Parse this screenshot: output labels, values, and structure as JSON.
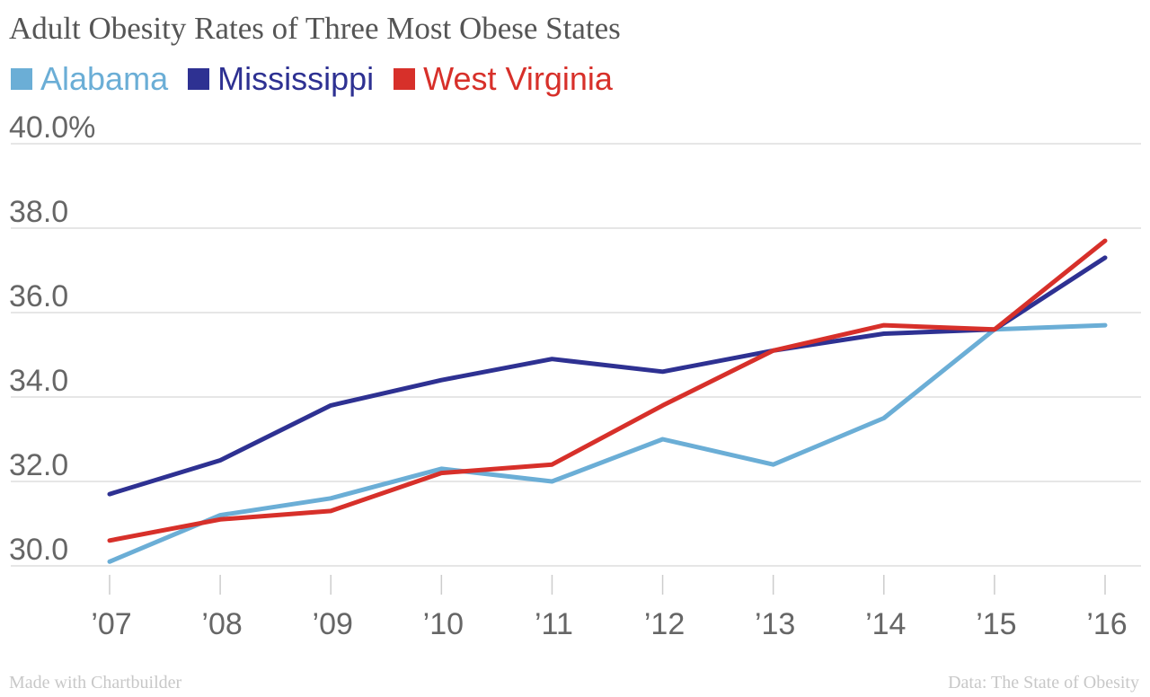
{
  "chart_data": {
    "type": "line",
    "title": "Adult Obesity Rates of Three Most Obese States",
    "x": [
      "’07",
      "’08",
      "’09",
      "’10",
      "’11",
      "’12",
      "’13",
      "’14",
      "’15",
      "’16"
    ],
    "yticks": [
      "30.0",
      "32.0",
      "34.0",
      "36.0",
      "38.0",
      "40.0%"
    ],
    "ylim": [
      30,
      40
    ],
    "grid": true,
    "legend_position": "top-left",
    "series": [
      {
        "name": "Alabama",
        "color": "#6baed6",
        "values": [
          30.1,
          31.2,
          31.6,
          32.3,
          32.0,
          33.0,
          32.4,
          33.5,
          35.6,
          35.7
        ]
      },
      {
        "name": "Mississippi",
        "color": "#2e3192",
        "values": [
          31.7,
          32.5,
          33.8,
          34.4,
          34.9,
          34.6,
          35.1,
          35.5,
          35.6,
          37.3
        ]
      },
      {
        "name": "West Virginia",
        "color": "#d7302a",
        "values": [
          30.6,
          31.1,
          31.3,
          32.2,
          32.4,
          33.8,
          35.1,
          35.7,
          35.6,
          37.7
        ]
      }
    ]
  },
  "footer": {
    "credit": "Made with Chartbuilder",
    "source": "Data: The State of Obesity"
  }
}
